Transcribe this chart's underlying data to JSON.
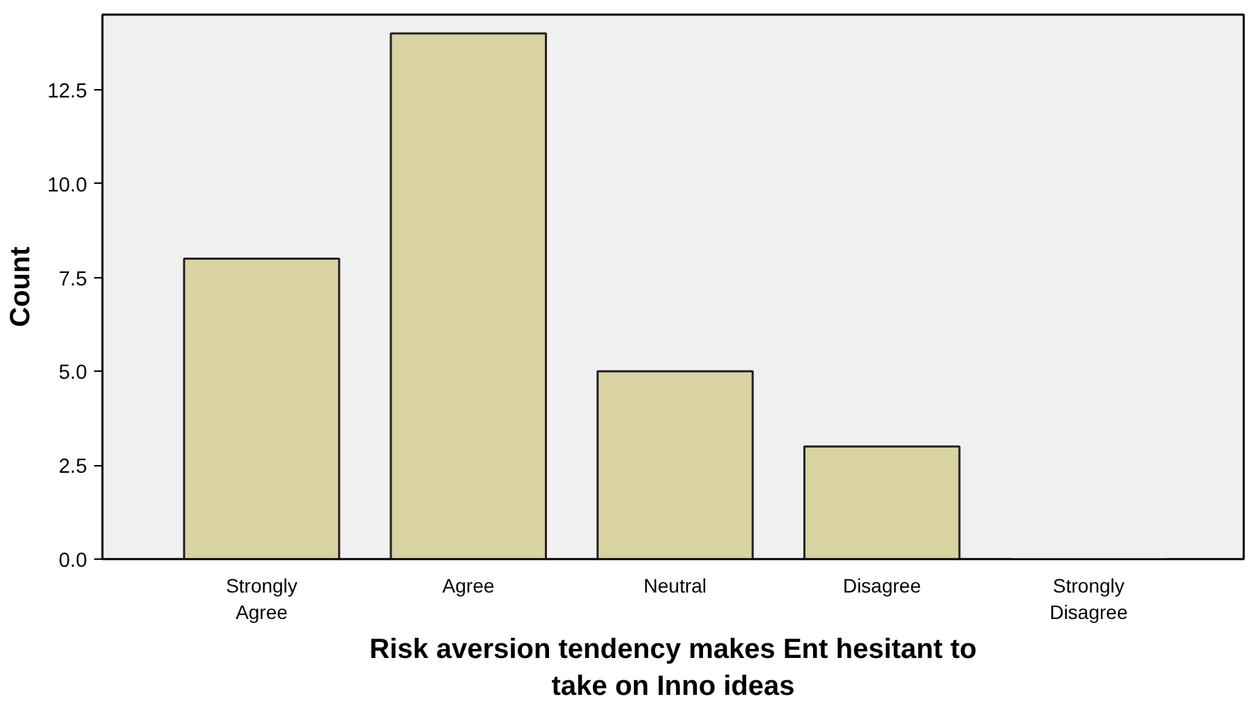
{
  "chart_data": {
    "type": "bar",
    "xlabel": "Risk aversion tendency makes Ent hesitant to take on Inno ideas",
    "ylabel": "Count",
    "categories": [
      "Strongly Agree",
      "Agree",
      "Neutral",
      "Disagree",
      "Strongly Disagree"
    ],
    "values": [
      8,
      14,
      5,
      3,
      0
    ],
    "color": "#d8d3a0",
    "ylim": [
      0,
      14.5
    ],
    "yticks": [
      {
        "value": 0,
        "label": "0.0"
      },
      {
        "value": 2.5,
        "label": "2.5"
      },
      {
        "value": 5,
        "label": "5.0"
      },
      {
        "value": 7.5,
        "label": "7.5"
      },
      {
        "value": 10,
        "label": "10.0"
      },
      {
        "value": 12.5,
        "label": "12.5"
      }
    ],
    "grid": false
  }
}
